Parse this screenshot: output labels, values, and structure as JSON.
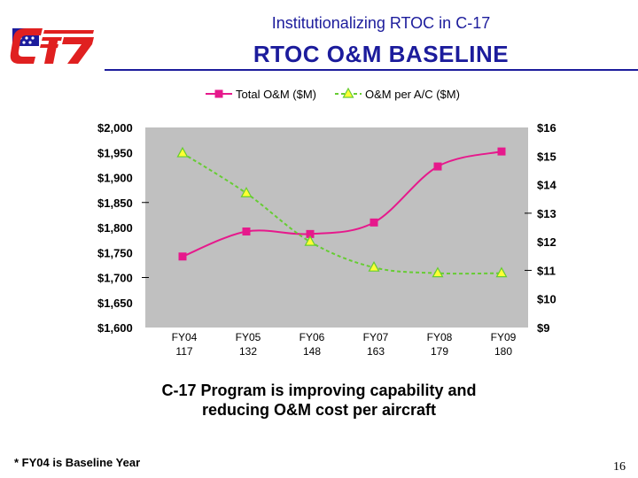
{
  "header": {
    "subtitle": "Institutionalizing RTOC in C-17",
    "title": "RTOC O&M BASELINE"
  },
  "colors": {
    "title": "#1c1c9c",
    "total": "#e6198c",
    "per_ac": "#66cc33",
    "marker_per_ac": "#ffff33",
    "plot_bg": "#c0c0c0"
  },
  "chart_data": {
    "type": "line",
    "categories": [
      "FY04",
      "FY05",
      "FY06",
      "FY07",
      "FY08",
      "FY09"
    ],
    "category_sublabels": [
      "117",
      "132",
      "148",
      "163",
      "179",
      "180"
    ],
    "series": [
      {
        "name": "Total O&M ($M)",
        "axis": "left",
        "values": [
          1742,
          1792,
          1787,
          1810,
          1922,
          1952
        ]
      },
      {
        "name": "O&M per A/C ($M)",
        "axis": "right",
        "values": [
          15.1,
          13.7,
          12.0,
          11.1,
          10.9,
          10.9
        ]
      }
    ],
    "y_left": {
      "min": 1600,
      "max": 2000,
      "ticks": [
        "$2,000",
        "$1,950",
        "$1,900",
        "$1,850",
        "$1,800",
        "$1,750",
        "$1,700",
        "$1,650",
        "$1,600"
      ]
    },
    "y_right": {
      "min": 9,
      "max": 16,
      "ticks": [
        "$16",
        "$15",
        "$14",
        "$13",
        "$12",
        "$11",
        "$10",
        "$9"
      ]
    },
    "legend_position": "top"
  },
  "caption": {
    "line1": "C-17 Program is improving capability and",
    "line2": "reducing O&M cost per aircraft"
  },
  "footnote": "* FY04 is Baseline Year",
  "page_number": "16"
}
